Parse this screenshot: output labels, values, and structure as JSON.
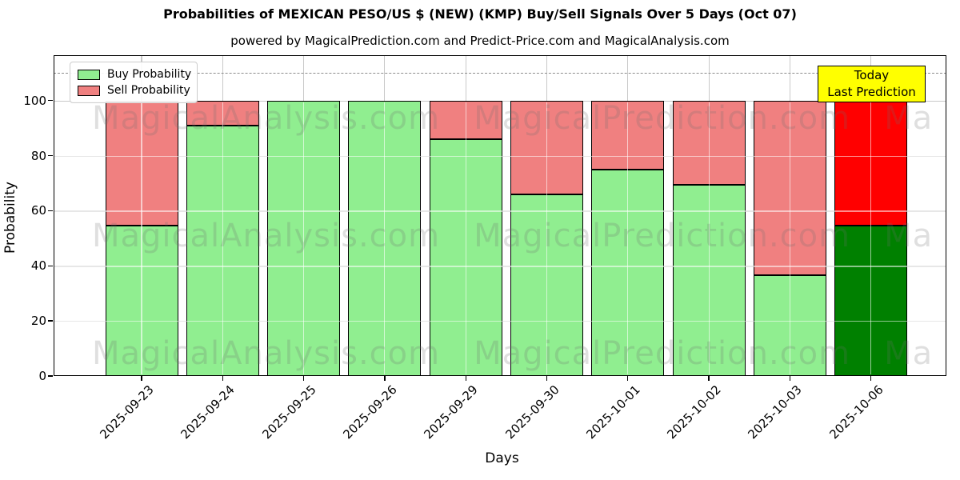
{
  "title": "Probabilities of MEXICAN PESO/US $ (NEW) (KMP) Buy/Sell Signals Over 5 Days (Oct 07)",
  "subtitle": "powered by MagicalPrediction.com and Predict-Price.com and MagicalAnalysis.com",
  "legend": {
    "items": [
      {
        "label": "Buy Probability",
        "color": "#90ee90"
      },
      {
        "label": "Sell Probability",
        "color": "#f08080"
      }
    ]
  },
  "annotation": {
    "line1": "Today",
    "line2": "Last Prediction",
    "bg_color": "#ffff00"
  },
  "watermarks": {
    "left_text": "MagicalAnalysis.com",
    "right_text": "MagicalPrediction.com",
    "partial_text": "Ma"
  },
  "chart_data": {
    "type": "bar",
    "stacked": true,
    "title": "Probabilities of MEXICAN PESO/US $ (NEW) (KMP) Buy/Sell Signals Over 5 Days (Oct 07)",
    "xlabel": "Days",
    "ylabel": "Probability",
    "categories": [
      "2025-09-23",
      "2025-09-24",
      "2025-09-25",
      "2025-09-26",
      "2025-09-29",
      "2025-09-30",
      "2025-10-01",
      "2025-10-02",
      "2025-10-03",
      "2025-10-06"
    ],
    "series": [
      {
        "name": "Buy Probability",
        "color": "#90ee90",
        "today_color": "#008000",
        "values": [
          54.5,
          91,
          100,
          100,
          86,
          66,
          75,
          69.5,
          36.5,
          54.5
        ]
      },
      {
        "name": "Sell Probability",
        "color": "#f08080",
        "today_color": "#ff0000",
        "values": [
          45.5,
          9,
          0,
          0,
          14,
          34,
          25,
          30.5,
          63.5,
          45.5
        ]
      }
    ],
    "today_index": 9,
    "yticks": [
      0,
      20,
      40,
      60,
      80,
      100
    ],
    "ylim": [
      0,
      116.5
    ],
    "dashed_hline": 110,
    "grid": true,
    "legend_position": "upper left",
    "bar_edge_color": "#000000",
    "grid_color": "#c9c9c9"
  }
}
